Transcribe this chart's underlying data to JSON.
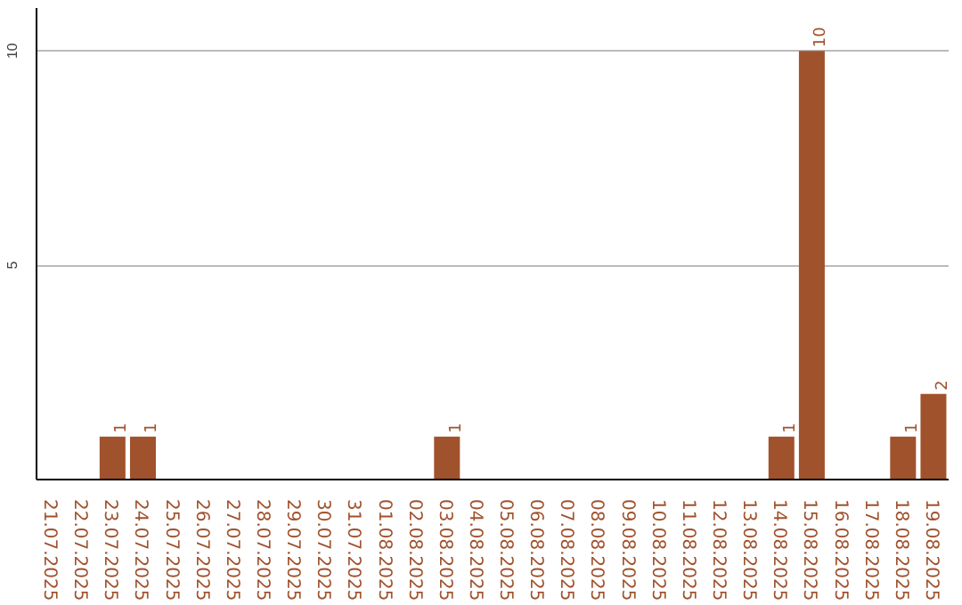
{
  "chart_data": {
    "type": "bar",
    "categories": [
      "21.07.2025",
      "22.07.2025",
      "23.07.2025",
      "24.07.2025",
      "25.07.2025",
      "26.07.2025",
      "27.07.2025",
      "28.07.2025",
      "29.07.2025",
      "30.07.2025",
      "31.07.2025",
      "01.08.2025",
      "02.08.2025",
      "03.08.2025",
      "04.08.2025",
      "05.08.2025",
      "06.08.2025",
      "07.08.2025",
      "08.08.2025",
      "09.08.2025",
      "10.08.2025",
      "11.08.2025",
      "12.08.2025",
      "13.08.2025",
      "14.08.2025",
      "15.08.2025",
      "16.08.2025",
      "17.08.2025",
      "18.08.2025",
      "19.08.2025"
    ],
    "values": [
      0,
      0,
      1,
      1,
      0,
      0,
      0,
      0,
      0,
      0,
      0,
      0,
      0,
      1,
      0,
      0,
      0,
      0,
      0,
      0,
      0,
      0,
      0,
      0,
      1,
      10,
      0,
      0,
      1,
      2
    ],
    "value_labels": [
      null,
      null,
      "1",
      "1",
      null,
      null,
      null,
      null,
      null,
      null,
      null,
      null,
      null,
      "1",
      null,
      null,
      null,
      null,
      null,
      null,
      null,
      null,
      null,
      null,
      "1",
      "10",
      null,
      null,
      "1",
      "2"
    ],
    "color": "#a0522d",
    "ylim": [
      0,
      11
    ],
    "yticks": [
      5,
      10
    ],
    "grid": "y"
  }
}
